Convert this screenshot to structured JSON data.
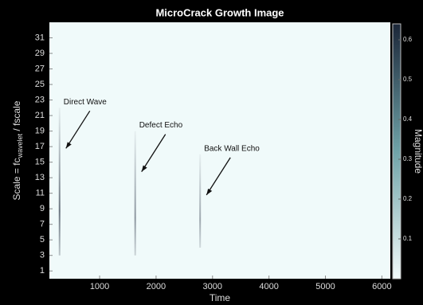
{
  "chart_data": {
    "type": "scalogram",
    "title": "MicroCrack Growth Image",
    "xlabel": "Time",
    "ylabel": {
      "main": "Scale = fc",
      "sub": "wavelet",
      "tail": " / fscale"
    },
    "xlim": [
      110,
      6150
    ],
    "xticks": [
      1000,
      2000,
      3000,
      4000,
      5000,
      6000
    ],
    "ylim": [
      0,
      33
    ],
    "yticks": [
      1,
      3,
      5,
      7,
      9,
      11,
      13,
      15,
      17,
      19,
      21,
      23,
      25,
      27,
      29,
      31
    ],
    "colorbar": {
      "label": "Magnitude",
      "clim": [
        0,
        0.64
      ],
      "ticks": [
        0.1,
        0.2,
        0.3,
        0.4,
        0.5,
        0.6
      ]
    },
    "events": [
      {
        "label": "Direct Wave",
        "time": 290,
        "scale_low": 3,
        "scale_high": 22,
        "magnitude": 0.4
      },
      {
        "label": "Defect Echo",
        "time": 1630,
        "scale_low": 3,
        "scale_high": 19,
        "magnitude": 0.3
      },
      {
        "label": "Back Wall Echo",
        "time": 2780,
        "scale_low": 4,
        "scale_high": 16,
        "magnitude": 0.25
      }
    ]
  }
}
